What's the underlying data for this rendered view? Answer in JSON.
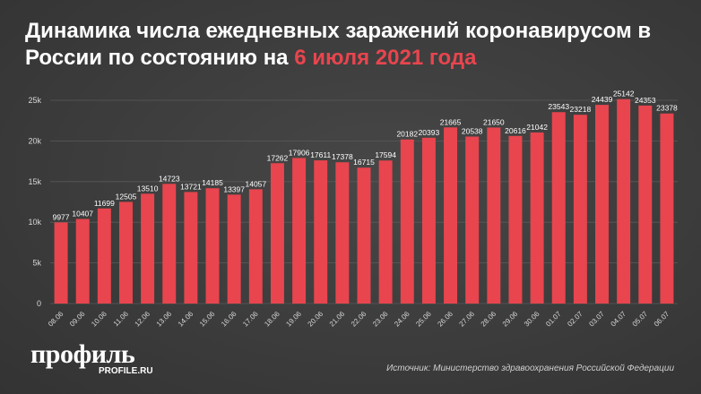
{
  "header": {
    "title_main": "Динамика числа ежедневных заражений коронавирусом в России по состоянию на ",
    "title_highlight": "6 июля 2021 года"
  },
  "footer": {
    "logo_main": "профиль",
    "logo_sub": "PROFILE.RU",
    "source": "Источник: Министерство здравоохранения Российской Федерации"
  },
  "colors": {
    "bar": "#e8454e",
    "highlight": "#e8454e",
    "grid": "#5a5a5a"
  },
  "chart_data": {
    "type": "bar",
    "title": "Динамика числа ежедневных заражений коронавирусом в России по состоянию на 6 июля 2021 года",
    "xlabel": "",
    "ylabel": "",
    "ylim": [
      0,
      25000
    ],
    "yticks": [
      0,
      5000,
      10000,
      15000,
      20000,
      25000
    ],
    "ytick_labels": [
      "0",
      "5k",
      "10k",
      "15k",
      "20k",
      "25k"
    ],
    "grid": true,
    "categories": [
      "08.06",
      "09.06",
      "10.06",
      "11.06",
      "12.06",
      "13.06",
      "14.06",
      "15.06",
      "16.06",
      "17.06",
      "18.06",
      "19.06",
      "20.06",
      "21.06",
      "22.06",
      "23.06",
      "24.06",
      "25.06",
      "26.06",
      "27.06",
      "28.06",
      "29.06",
      "30.06",
      "01.07",
      "02.07",
      "03.07",
      "04.07",
      "05.07",
      "06.07"
    ],
    "values": [
      9977,
      10407,
      11699,
      12505,
      13510,
      14723,
      13721,
      14185,
      13397,
      14057,
      17262,
      17906,
      17611,
      17378,
      16715,
      17594,
      20182,
      20393,
      21665,
      20538,
      21650,
      20616,
      21042,
      23543,
      23218,
      24439,
      25142,
      24353,
      23378
    ]
  }
}
